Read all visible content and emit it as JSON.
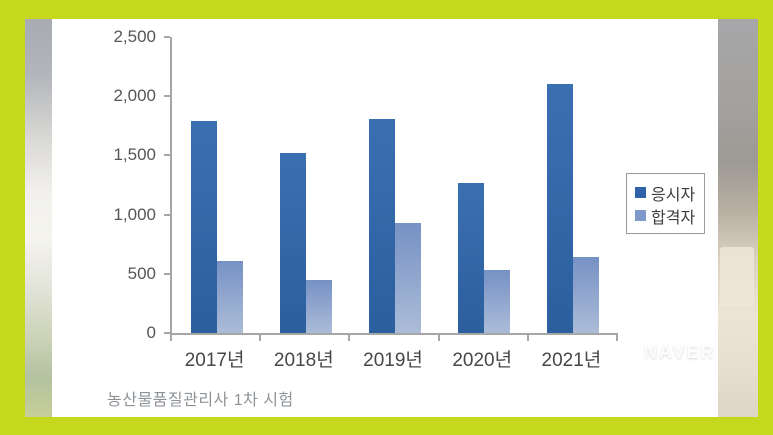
{
  "frame": {
    "border_color": "#c6d81e",
    "card_bg": "#ffffff"
  },
  "watermark": "NAVER",
  "caption": "농산물품질관리사 1차 시험",
  "chart_data": {
    "type": "bar",
    "title": "",
    "categories": [
      "2017년",
      "2018년",
      "2019년",
      "2020년",
      "2021년"
    ],
    "series": [
      {
        "name": "응시자",
        "color": "#2e64a7",
        "color_top": "#3a6fb2",
        "color_bottom": "#2b5f9e",
        "values": [
          1790,
          1520,
          1810,
          1270,
          2100
        ]
      },
      {
        "name": "합격자",
        "color": "#7e99c8",
        "color_top": "#7691c4",
        "color_bottom": "#abbcd8",
        "values": [
          610,
          450,
          930,
          530,
          640
        ]
      }
    ],
    "xlabel": "",
    "ylabel": "",
    "ylim": [
      0,
      2500
    ],
    "ytick_interval": 500,
    "ytick_labels": [
      "0",
      "500",
      "1,000",
      "1,500",
      "2,000",
      "2,500"
    ],
    "legend_position": "right",
    "grid": false,
    "axis_color": "#a6a6a6",
    "tick_label_color": "#565656"
  }
}
